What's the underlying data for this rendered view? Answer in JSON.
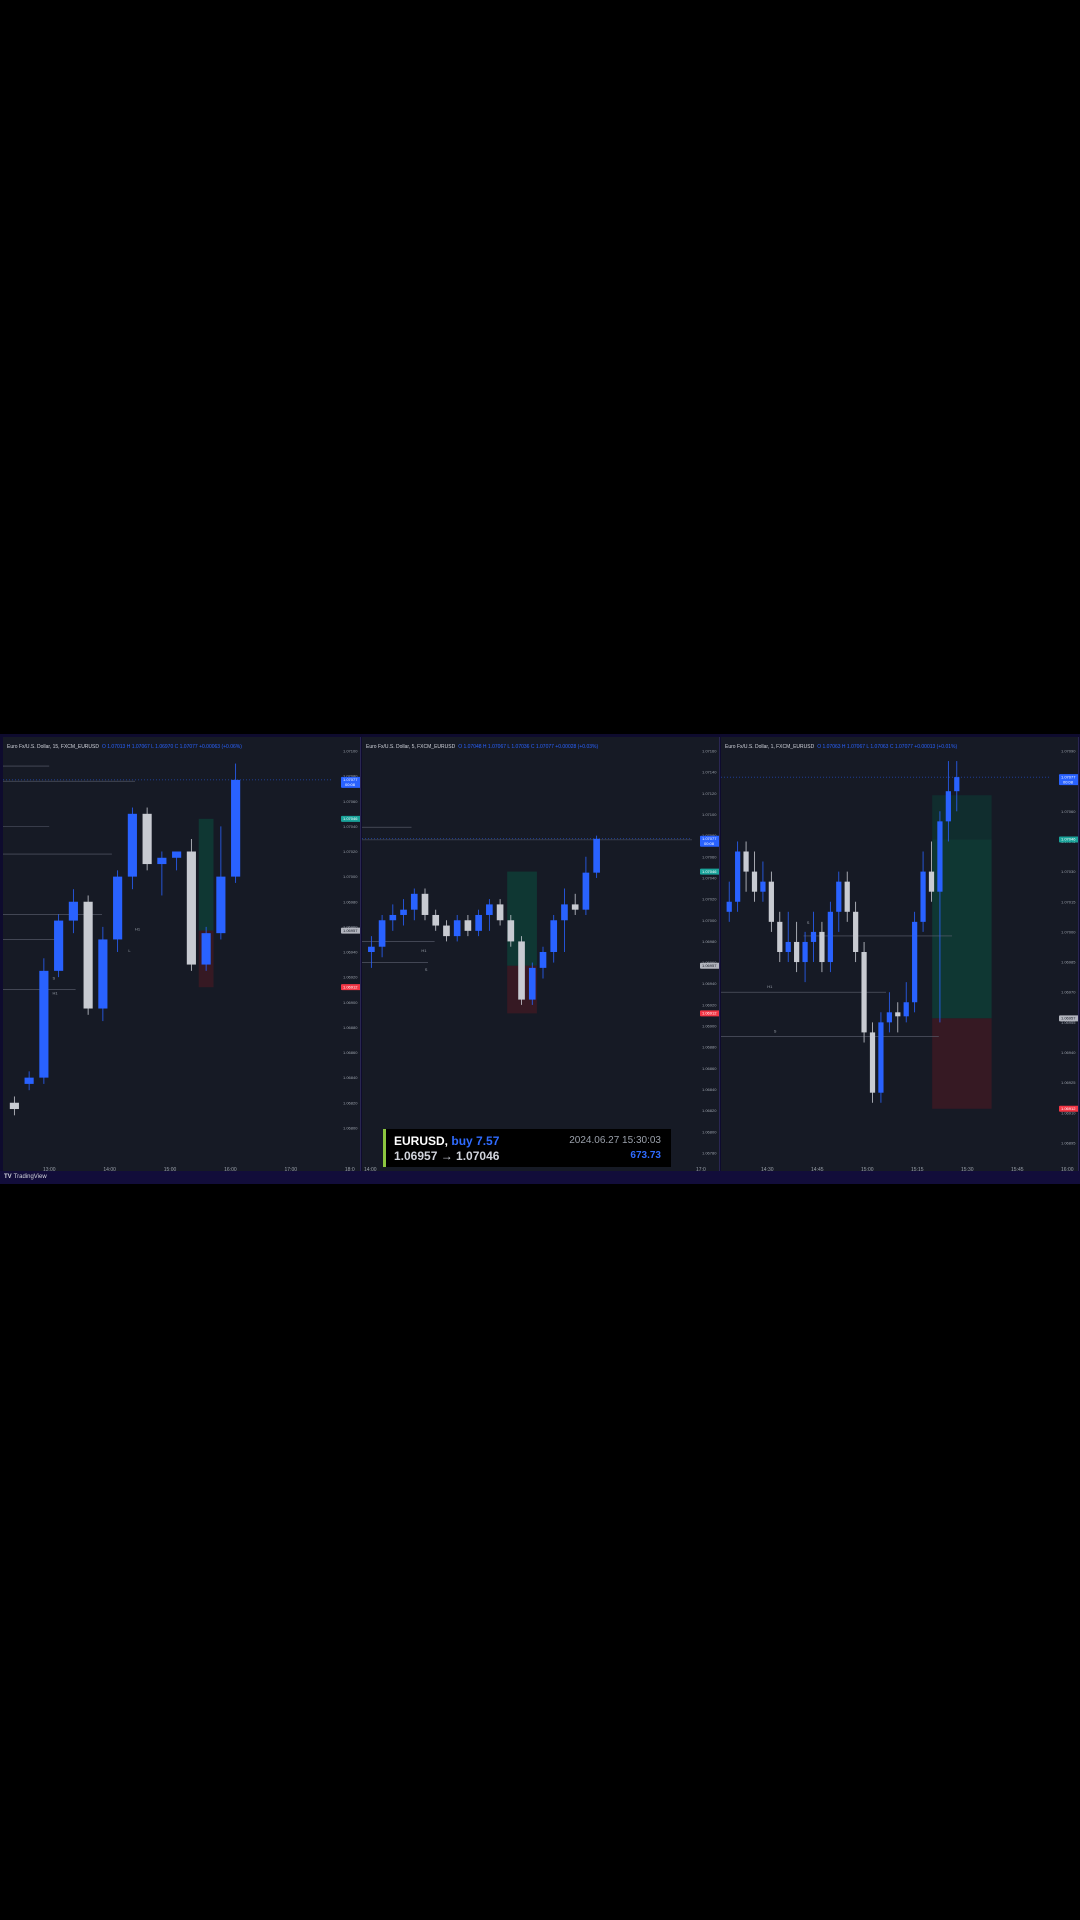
{
  "footer": {
    "logo_mark": "TV",
    "brand": "TradingView"
  },
  "trade": {
    "symbol": "EURUSD,",
    "side": "buy 7.57",
    "prices": "1.06957 → 1.07046",
    "datetime": "2024.06.27 15:30:03",
    "pnl": "673.73"
  },
  "colors": {
    "up": "#2962ff",
    "down": "#c8cbd2",
    "bg": "#161a25",
    "profit_zone": "#0e3b35",
    "loss_zone": "#3a1a24",
    "tp_tag": "#1aa39a",
    "sl_tag": "#f23645",
    "last_tag": "#2962ff"
  },
  "chart_data": [
    {
      "type": "candlestick",
      "legend": "Euro Fx/U.S. Dollar, 15, FXCM_EURUSD",
      "ohlc_text": "O 1.07013  H 1.07067  L 1.06970  C 1.07077  +0.00063 (+0.06%)",
      "ylim": [
        1.0678,
        1.071
      ],
      "y_ticks": [
        "1.07100",
        "1.07080",
        "1.07060",
        "1.07040",
        "1.07020",
        "1.07000",
        "1.06980",
        "1.06960",
        "1.06940",
        "1.06920",
        "1.06900",
        "1.06880",
        "1.06860",
        "1.06840",
        "1.06820",
        "1.06800"
      ],
      "x_ticks": [
        "13:00",
        "14:00",
        "15:00",
        "16:00",
        "17:00",
        "18:0"
      ],
      "price_tags": [
        {
          "label": "1.07077",
          "sub": "00:08",
          "value": 1.07077,
          "kind": "last"
        },
        {
          "label": "1.07046",
          "value": 1.07046,
          "kind": "tp"
        },
        {
          "label": "1.06957",
          "value": 1.06957,
          "kind": "entry"
        },
        {
          "label": "1.06912",
          "value": 1.06912,
          "kind": "sl"
        }
      ],
      "zone": {
        "start": 14.3,
        "end": 15.0,
        "entry": 1.06957,
        "tp": 1.07046,
        "sl": 1.06912
      },
      "levels": [
        {
          "value": 1.07088,
          "from": 0,
          "to": 0.14
        },
        {
          "value": 1.07076,
          "from": 0,
          "to": 0.4
        },
        {
          "value": 1.0704,
          "from": 0,
          "to": 0.14
        },
        {
          "value": 1.07018,
          "from": 0,
          "to": 0.33
        },
        {
          "value": 1.0697,
          "from": 0,
          "to": 0.3
        },
        {
          "value": 1.0695,
          "from": 0,
          "to": 0.16
        },
        {
          "value": 1.0691,
          "from": 0,
          "to": 0.22
        }
      ],
      "level_labels": [
        {
          "text": "H1",
          "value": 1.06957,
          "at": 0.4
        },
        {
          "text": "L",
          "value": 1.0694,
          "at": 0.38
        },
        {
          "text": "S",
          "value": 1.06918,
          "at": 0.15
        },
        {
          "text": "H1",
          "value": 1.06906,
          "at": 0.15
        }
      ],
      "candles": [
        {
          "o": 1.0682,
          "h": 1.06825,
          "l": 1.0681,
          "c": 1.06815
        },
        {
          "o": 1.06835,
          "h": 1.06845,
          "l": 1.0683,
          "c": 1.0684
        },
        {
          "o": 1.0684,
          "h": 1.06935,
          "l": 1.06835,
          "c": 1.06925
        },
        {
          "o": 1.06925,
          "h": 1.0697,
          "l": 1.0692,
          "c": 1.06965
        },
        {
          "o": 1.06965,
          "h": 1.0699,
          "l": 1.06955,
          "c": 1.0698
        },
        {
          "o": 1.0698,
          "h": 1.06985,
          "l": 1.0689,
          "c": 1.06895
        },
        {
          "o": 1.06895,
          "h": 1.0696,
          "l": 1.06885,
          "c": 1.0695
        },
        {
          "o": 1.0695,
          "h": 1.07005,
          "l": 1.0694,
          "c": 1.07
        },
        {
          "o": 1.07,
          "h": 1.07055,
          "l": 1.0699,
          "c": 1.0705
        },
        {
          "o": 1.0705,
          "h": 1.07055,
          "l": 1.07005,
          "c": 1.0701
        },
        {
          "o": 1.0701,
          "h": 1.0702,
          "l": 1.06985,
          "c": 1.07015
        },
        {
          "o": 1.07015,
          "h": 1.0702,
          "l": 1.07005,
          "c": 1.0702
        },
        {
          "o": 1.0702,
          "h": 1.0703,
          "l": 1.06925,
          "c": 1.0693
        },
        {
          "o": 1.0693,
          "h": 1.0696,
          "l": 1.06925,
          "c": 1.06955
        },
        {
          "o": 1.06955,
          "h": 1.0704,
          "l": 1.0695,
          "c": 1.07
        },
        {
          "o": 1.07,
          "h": 1.0709,
          "l": 1.06995,
          "c": 1.07077
        }
      ]
    },
    {
      "type": "candlestick",
      "legend": "Euro Fx/U.S. Dollar, 5, FXCM_EURUSD",
      "ohlc_text": "O 1.07048  H 1.07067  L 1.07036  C 1.07077  +0.00028 (+0.03%)",
      "ylim": [
        1.0678,
        1.0716
      ],
      "y_ticks": [
        "1.07160",
        "1.07140",
        "1.07120",
        "1.07100",
        "1.07080",
        "1.07060",
        "1.07040",
        "1.07020",
        "1.07000",
        "1.06980",
        "1.06960",
        "1.06940",
        "1.06920",
        "1.06900",
        "1.06880",
        "1.06860",
        "1.06840",
        "1.06820",
        "1.06800",
        "1.06780"
      ],
      "x_ticks": [
        "14:00",
        "17:0"
      ],
      "price_tags": [
        {
          "label": "1.07077",
          "sub": "00:08",
          "value": 1.07077,
          "kind": "last"
        },
        {
          "label": "1.07046",
          "value": 1.07046,
          "kind": "tp"
        },
        {
          "label": "1.06957",
          "value": 1.06957,
          "kind": "entry"
        },
        {
          "label": "1.06912",
          "value": 1.06912,
          "kind": "sl"
        }
      ],
      "zone": {
        "start": 0.44,
        "end": 0.53,
        "entry": 1.06957,
        "tp": 1.07046,
        "sl": 1.06912
      },
      "levels": [
        {
          "value": 1.07088,
          "from": 0,
          "to": 0.15
        },
        {
          "value": 1.07076,
          "from": 0,
          "to": 1.0
        },
        {
          "value": 1.0698,
          "from": 0,
          "to": 0.22
        },
        {
          "value": 1.0696,
          "from": 0,
          "to": 0.2
        }
      ],
      "level_labels": [
        {
          "text": "H1",
          "value": 1.0697,
          "at": 0.18
        },
        {
          "text": "S",
          "value": 1.06952,
          "at": 0.19
        }
      ],
      "candles": [
        {
          "o": 1.0697,
          "h": 1.06985,
          "l": 1.06955,
          "c": 1.06975
        },
        {
          "o": 1.06975,
          "h": 1.07005,
          "l": 1.06965,
          "c": 1.07
        },
        {
          "o": 1.07,
          "h": 1.07015,
          "l": 1.0699,
          "c": 1.07005
        },
        {
          "o": 1.07005,
          "h": 1.0702,
          "l": 1.06995,
          "c": 1.0701
        },
        {
          "o": 1.0701,
          "h": 1.0703,
          "l": 1.07,
          "c": 1.07025
        },
        {
          "o": 1.07025,
          "h": 1.0703,
          "l": 1.07,
          "c": 1.07005
        },
        {
          "o": 1.07005,
          "h": 1.0701,
          "l": 1.0699,
          "c": 1.06995
        },
        {
          "o": 1.06995,
          "h": 1.07,
          "l": 1.0698,
          "c": 1.06985
        },
        {
          "o": 1.06985,
          "h": 1.07005,
          "l": 1.0698,
          "c": 1.07
        },
        {
          "o": 1.07,
          "h": 1.07005,
          "l": 1.06985,
          "c": 1.0699
        },
        {
          "o": 1.0699,
          "h": 1.0701,
          "l": 1.06985,
          "c": 1.07005
        },
        {
          "o": 1.07005,
          "h": 1.0702,
          "l": 1.0699,
          "c": 1.07015
        },
        {
          "o": 1.07015,
          "h": 1.0702,
          "l": 1.06995,
          "c": 1.07
        },
        {
          "o": 1.07,
          "h": 1.07005,
          "l": 1.06975,
          "c": 1.0698
        },
        {
          "o": 1.0698,
          "h": 1.06985,
          "l": 1.0692,
          "c": 1.06925
        },
        {
          "o": 1.06925,
          "h": 1.0696,
          "l": 1.0692,
          "c": 1.06955
        },
        {
          "o": 1.06955,
          "h": 1.06975,
          "l": 1.06945,
          "c": 1.0697
        },
        {
          "o": 1.0697,
          "h": 1.07005,
          "l": 1.0696,
          "c": 1.07
        },
        {
          "o": 1.07,
          "h": 1.0703,
          "l": 1.0697,
          "c": 1.07015
        },
        {
          "o": 1.07015,
          "h": 1.07025,
          "l": 1.07005,
          "c": 1.0701
        },
        {
          "o": 1.0701,
          "h": 1.0706,
          "l": 1.07005,
          "c": 1.07045
        },
        {
          "o": 1.07045,
          "h": 1.0708,
          "l": 1.0704,
          "c": 1.07077
        }
      ]
    },
    {
      "type": "candlestick",
      "legend": "Euro Fx/U.S. Dollar, 1, FXCM_EURUSD",
      "ohlc_text": "O 1.07063  H 1.07067  L 1.07063  C 1.07077  +0.00013 (+0.01%)",
      "ylim": [
        1.0689,
        1.0709
      ],
      "y_ticks": [
        "1.07090",
        "1.07075",
        "1.07060",
        "1.07045",
        "1.07030",
        "1.07015",
        "1.07000",
        "1.06985",
        "1.06970",
        "1.06955",
        "1.06940",
        "1.06925",
        "1.06910",
        "1.06895"
      ],
      "x_ticks": [
        "14:30",
        "14:45",
        "15:00",
        "15:15",
        "15:30",
        "15:45",
        "16:00"
      ],
      "price_tags": [
        {
          "label": "1.07077",
          "sub": "00:08",
          "value": 1.07077,
          "kind": "last"
        },
        {
          "label": "1.07046",
          "value": 1.07046,
          "kind": "tp"
        },
        {
          "label": "1.06957",
          "value": 1.06957,
          "kind": "entry"
        },
        {
          "label": "1.06912",
          "value": 1.06912,
          "kind": "sl"
        }
      ],
      "zone": {
        "start": 0.64,
        "end": 0.82,
        "entry": 1.06957,
        "tp": 1.07046,
        "sl": 1.06912
      },
      "zone_extra": 1.07068,
      "levels": [
        {
          "value": 1.06998,
          "from": 0.25,
          "to": 0.7
        },
        {
          "value": 1.0697,
          "from": 0,
          "to": 0.5
        },
        {
          "value": 1.06948,
          "from": 0,
          "to": 0.66
        }
      ],
      "level_labels": [
        {
          "text": "S",
          "value": 1.07004,
          "at": 0.26
        },
        {
          "text": "H1",
          "value": 1.06972,
          "at": 0.14
        },
        {
          "text": "S",
          "value": 1.0695,
          "at": 0.16
        }
      ],
      "candles": [
        {
          "o": 1.0701,
          "h": 1.07025,
          "l": 1.07005,
          "c": 1.07015
        },
        {
          "o": 1.07015,
          "h": 1.07045,
          "l": 1.0701,
          "c": 1.0704
        },
        {
          "o": 1.0704,
          "h": 1.07045,
          "l": 1.0702,
          "c": 1.0703
        },
        {
          "o": 1.0703,
          "h": 1.0704,
          "l": 1.07015,
          "c": 1.0702
        },
        {
          "o": 1.0702,
          "h": 1.07035,
          "l": 1.07015,
          "c": 1.07025
        },
        {
          "o": 1.07025,
          "h": 1.0703,
          "l": 1.07,
          "c": 1.07005
        },
        {
          "o": 1.07005,
          "h": 1.0701,
          "l": 1.06985,
          "c": 1.0699
        },
        {
          "o": 1.0699,
          "h": 1.0701,
          "l": 1.06985,
          "c": 1.06995
        },
        {
          "o": 1.06995,
          "h": 1.07005,
          "l": 1.0698,
          "c": 1.06985
        },
        {
          "o": 1.06985,
          "h": 1.07,
          "l": 1.06975,
          "c": 1.06995
        },
        {
          "o": 1.06995,
          "h": 1.0701,
          "l": 1.06985,
          "c": 1.07
        },
        {
          "o": 1.07,
          "h": 1.07005,
          "l": 1.0698,
          "c": 1.06985
        },
        {
          "o": 1.06985,
          "h": 1.07015,
          "l": 1.0698,
          "c": 1.0701
        },
        {
          "o": 1.0701,
          "h": 1.0703,
          "l": 1.07,
          "c": 1.07025
        },
        {
          "o": 1.07025,
          "h": 1.0703,
          "l": 1.07005,
          "c": 1.0701
        },
        {
          "o": 1.0701,
          "h": 1.07015,
          "l": 1.06985,
          "c": 1.0699
        },
        {
          "o": 1.0699,
          "h": 1.06995,
          "l": 1.06945,
          "c": 1.0695
        },
        {
          "o": 1.0695,
          "h": 1.06955,
          "l": 1.06915,
          "c": 1.0692
        },
        {
          "o": 1.0692,
          "h": 1.0696,
          "l": 1.06915,
          "c": 1.06955
        },
        {
          "o": 1.06955,
          "h": 1.0697,
          "l": 1.0695,
          "c": 1.0696
        },
        {
          "o": 1.0696,
          "h": 1.06965,
          "l": 1.0695,
          "c": 1.06958
        },
        {
          "o": 1.06958,
          "h": 1.06975,
          "l": 1.06955,
          "c": 1.06965
        },
        {
          "o": 1.06965,
          "h": 1.0701,
          "l": 1.0696,
          "c": 1.07005
        },
        {
          "o": 1.07005,
          "h": 1.0704,
          "l": 1.07,
          "c": 1.0703
        },
        {
          "o": 1.0703,
          "h": 1.07045,
          "l": 1.07015,
          "c": 1.0702
        },
        {
          "o": 1.0702,
          "h": 1.0706,
          "l": 1.06955,
          "c": 1.07055
        },
        {
          "o": 1.07055,
          "h": 1.07085,
          "l": 1.07045,
          "c": 1.0707
        },
        {
          "o": 1.0707,
          "h": 1.07085,
          "l": 1.0706,
          "c": 1.07077
        }
      ]
    }
  ]
}
